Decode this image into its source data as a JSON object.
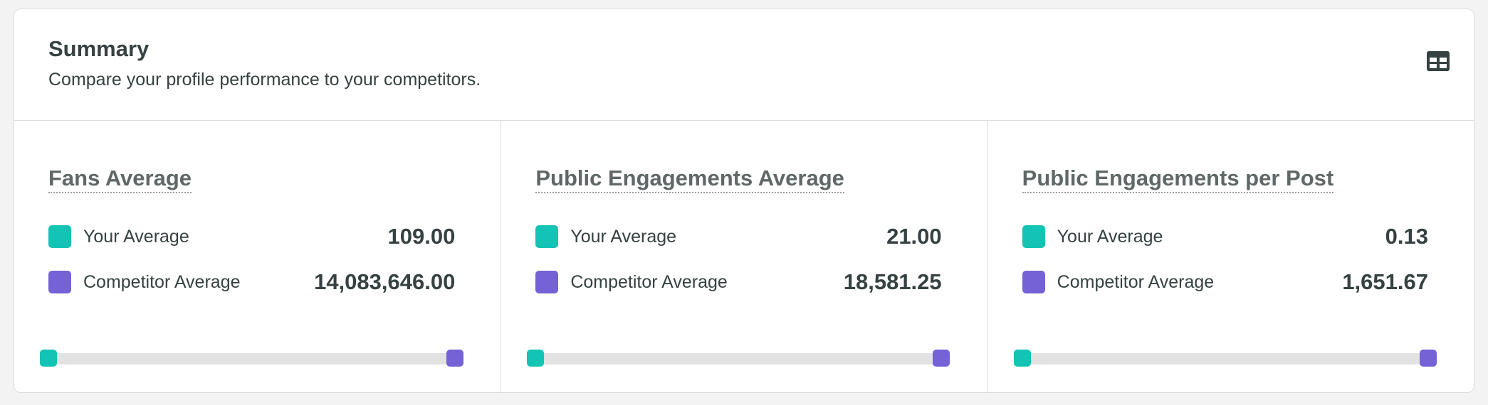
{
  "summary": {
    "title": "Summary",
    "subtitle": "Compare your profile performance to your competitors.",
    "table_toggle_icon": "table-icon"
  },
  "colors": {
    "your_average": "#13c3b3",
    "competitor_average": "#7462d6"
  },
  "panels": [
    {
      "title": "Fans Average",
      "rows": [
        {
          "label": "Your Average",
          "value": "109.00"
        },
        {
          "label": "Competitor Average",
          "value": "14,083,646.00"
        }
      ],
      "scale": {
        "your_position": 0.0,
        "competitor_position": 1.0
      }
    },
    {
      "title": "Public Engagements Average",
      "rows": [
        {
          "label": "Your Average",
          "value": "21.00"
        },
        {
          "label": "Competitor Average",
          "value": "18,581.25"
        }
      ],
      "scale": {
        "your_position": 0.0,
        "competitor_position": 1.0
      }
    },
    {
      "title": "Public Engagements per Post",
      "rows": [
        {
          "label": "Your Average",
          "value": "0.13"
        },
        {
          "label": "Competitor Average",
          "value": "1,651.67"
        }
      ],
      "scale": {
        "your_position": 0.0,
        "competitor_position": 1.0
      }
    }
  ]
}
